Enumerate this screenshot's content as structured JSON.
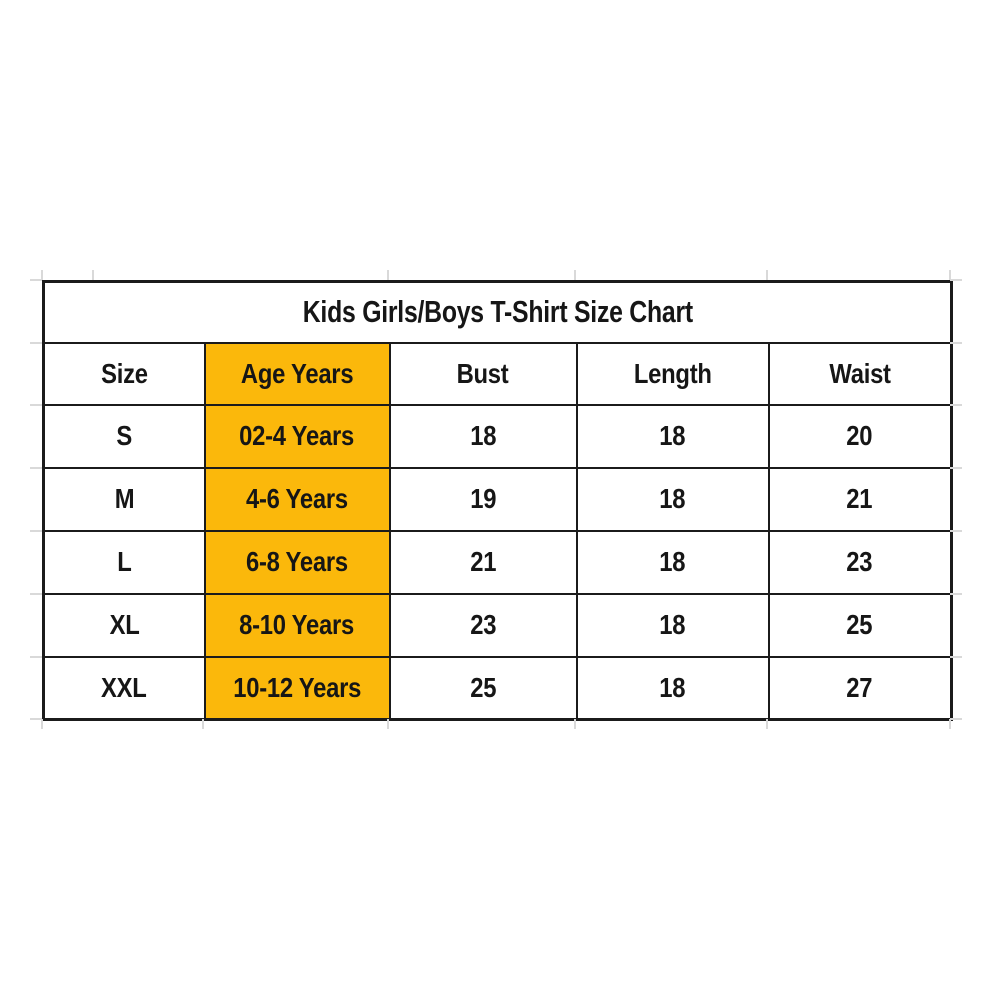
{
  "chart_data": {
    "type": "table",
    "title": "Kids Girls/Boys T-Shirt Size Chart",
    "columns": [
      "Size",
      "Age Years",
      "Bust",
      "Length",
      "Waist"
    ],
    "rows": [
      [
        "S",
        "02-4 Years",
        "18",
        "18",
        "20"
      ],
      [
        "M",
        "4-6 Years",
        "19",
        "18",
        "21"
      ],
      [
        "L",
        "6-8 Years",
        "21",
        "18",
        "23"
      ],
      [
        "XL",
        "8-10 Years",
        "23",
        "18",
        "25"
      ],
      [
        "XXL",
        "10-12 Years",
        "25",
        "18",
        "27"
      ]
    ],
    "highlighted_column": "Age Years",
    "layout_hints": {
      "title_position": "top merged row",
      "highlight_style": "entire Age Years column filled yellow",
      "grid": "black cell borders, faint spreadsheet gridline stubs outside table"
    }
  },
  "colors": {
    "title_bg": "#2e8698",
    "title_text": "#ffffff",
    "highlight_bg": "#fbb80b",
    "cell_bg": "#ffffff",
    "border": "#1b1b1b",
    "text": "#161616",
    "gridline_stub": "#d9d9d9",
    "page_bg": "#ffffff"
  }
}
